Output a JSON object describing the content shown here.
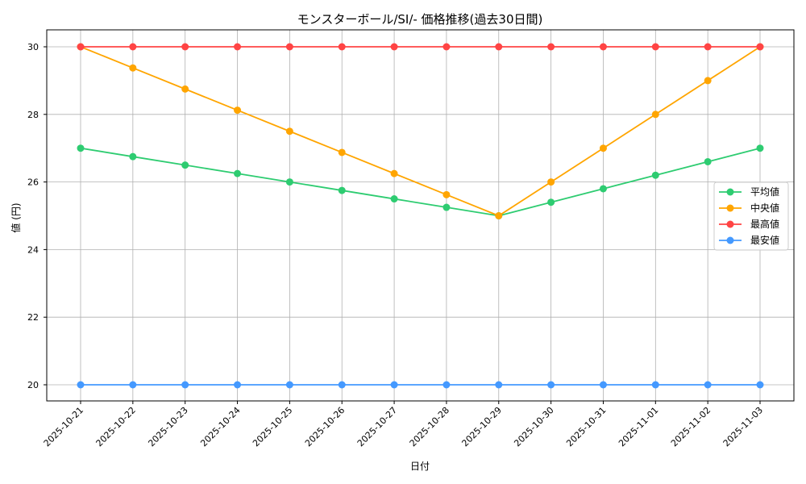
{
  "chart_data": {
    "type": "line",
    "title": "モンスターボール/SI/- 価格推移(過去30日間)",
    "xlabel": "日付",
    "ylabel": "値 (円)",
    "x": [
      "2025-10-21",
      "2025-10-22",
      "2025-10-23",
      "2025-10-24",
      "2025-10-25",
      "2025-10-26",
      "2025-10-27",
      "2025-10-28",
      "2025-10-29",
      "2025-10-30",
      "2025-10-31",
      "2025-11-01",
      "2025-11-02",
      "2025-11-03"
    ],
    "yticks": [
      20,
      22,
      24,
      26,
      28,
      30
    ],
    "ylim": [
      19.5,
      30.5
    ],
    "grid": true,
    "legend_position": "center-right",
    "series": [
      {
        "name": "平均値",
        "color": "#2ecc71",
        "values": [
          27,
          26.75,
          26.5,
          26.25,
          26,
          25.75,
          25.5,
          25.25,
          25,
          25.4,
          25.8,
          26.2,
          26.6,
          27
        ]
      },
      {
        "name": "中央値",
        "color": "#ffa500",
        "values": [
          30,
          29.375,
          28.75,
          28.125,
          27.5,
          26.875,
          26.25,
          25.625,
          25,
          26,
          27,
          28,
          29,
          30
        ]
      },
      {
        "name": "最高値",
        "color": "#ff4444",
        "values": [
          30,
          30,
          30,
          30,
          30,
          30,
          30,
          30,
          30,
          30,
          30,
          30,
          30,
          30
        ]
      },
      {
        "name": "最安値",
        "color": "#4499ff",
        "values": [
          20,
          20,
          20,
          20,
          20,
          20,
          20,
          20,
          20,
          20,
          20,
          20,
          20,
          20
        ]
      }
    ]
  }
}
